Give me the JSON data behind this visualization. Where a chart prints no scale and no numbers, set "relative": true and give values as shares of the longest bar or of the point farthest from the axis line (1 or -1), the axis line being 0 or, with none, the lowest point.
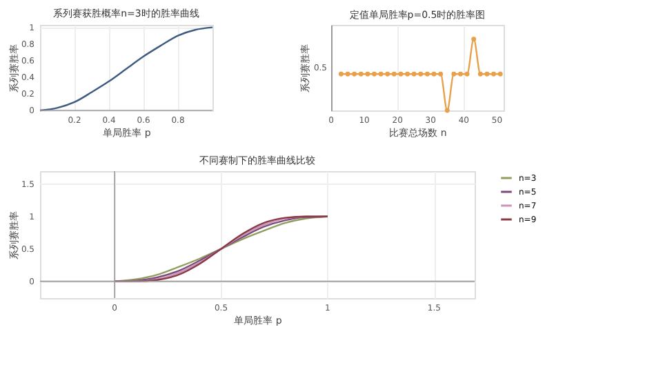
{
  "chart_data": [
    {
      "type": "line",
      "title": "系列赛获胜概率n=3时的胜率曲线",
      "xlabel": "单局胜率 p",
      "ylabel": "系列赛胜率",
      "x": [
        0,
        0.1,
        0.2,
        0.3,
        0.4,
        0.5,
        0.6,
        0.7,
        0.8,
        0.9,
        1
      ],
      "xlim": [
        0,
        1
      ],
      "xticks": [
        0.2,
        0.4,
        0.6,
        0.8
      ],
      "ylim": [
        0,
        1.03
      ],
      "yticks": [
        0,
        0.2,
        0.4,
        0.6,
        0.8,
        1
      ],
      "grid": true,
      "series": [
        {
          "color": "#3d5a80",
          "values": [
            0,
            0.03,
            0.1,
            0.22,
            0.35,
            0.5,
            0.65,
            0.78,
            0.9,
            0.97,
            1
          ]
        }
      ]
    },
    {
      "type": "line",
      "title": "定值单局胜率p=0.5时的胜率图",
      "xlabel": "比赛总场数 n",
      "ylabel": "系列赛胜率",
      "relative": true,
      "annotations": [
        "0.5"
      ],
      "x": [
        3,
        5,
        7,
        9,
        11,
        13,
        15,
        17,
        19,
        21,
        23,
        25,
        27,
        29,
        31,
        33,
        35,
        37,
        39,
        41,
        43,
        45,
        47,
        49,
        51
      ],
      "xlim": [
        0,
        52
      ],
      "xticks": [
        0,
        10,
        20,
        30,
        40,
        50
      ],
      "grid": true,
      "marker": "circle",
      "series": [
        {
          "color": "#e8a04a",
          "values": [
            0.51,
            0.51,
            0.51,
            0.51,
            0.51,
            0.51,
            0.51,
            0.51,
            0.51,
            0.51,
            0.51,
            0.51,
            0.51,
            0.51,
            0.51,
            0.51,
            0,
            0.51,
            0.51,
            0.51,
            1,
            0.51,
            0.51,
            0.51,
            0.51
          ]
        }
      ]
    },
    {
      "type": "line",
      "title": "不同赛制下的胜率曲线比较",
      "xlabel": "单局胜率 p",
      "ylabel": "系列赛胜率",
      "x": [
        0,
        0.1,
        0.2,
        0.3,
        0.4,
        0.5,
        0.6,
        0.7,
        0.8,
        0.9,
        1
      ],
      "xlim": [
        -0.35,
        1.69
      ],
      "xticks": [
        0,
        0.5,
        1,
        1.5
      ],
      "ylim": [
        -0.26,
        1.7
      ],
      "yticks": [
        0,
        0.5,
        1,
        1.5
      ],
      "grid": true,
      "legend": "top right",
      "series": [
        {
          "name": "n=3",
          "color": "#8f9e5e",
          "values": [
            0,
            0.03,
            0.1,
            0.22,
            0.35,
            0.5,
            0.65,
            0.78,
            0.9,
            0.97,
            1
          ]
        },
        {
          "name": "n=5",
          "color": "#7a4a78",
          "values": [
            0,
            0.01,
            0.06,
            0.16,
            0.32,
            0.5,
            0.68,
            0.84,
            0.94,
            0.99,
            1
          ]
        },
        {
          "name": "n=7",
          "color": "#c895b8",
          "values": [
            0,
            0,
            0.03,
            0.13,
            0.29,
            0.5,
            0.71,
            0.87,
            0.97,
            1,
            1
          ]
        },
        {
          "name": "n=9",
          "color": "#8a3846",
          "values": [
            0,
            0,
            0.02,
            0.1,
            0.27,
            0.5,
            0.73,
            0.9,
            0.98,
            1,
            1
          ]
        }
      ]
    }
  ]
}
